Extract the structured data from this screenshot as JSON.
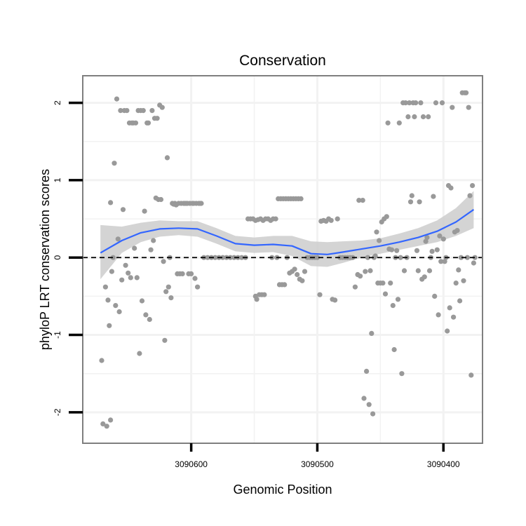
{
  "chart_data": {
    "type": "scatter",
    "title": "Conservation",
    "xlabel": "Genomic Position",
    "ylabel": "phyloP LRT conservation scores",
    "x_reversed": true,
    "xlim": [
      3090686,
      3090369
    ],
    "ylim": [
      -2.4,
      2.35
    ],
    "x_ticks": [
      3090600,
      3090500,
      3090400
    ],
    "x_tick_labels": [
      "3090600",
      "3090500",
      "3090400"
    ],
    "y_ticks": [
      -2,
      -1,
      0,
      1,
      2
    ],
    "y_tick_labels": [
      "-2",
      "-1",
      "0",
      "1",
      "2"
    ],
    "reference_line": 0,
    "colors": {
      "points": "#999999",
      "smooth_line": "#3366FF",
      "confidence_band": "#cccccc",
      "frame": "#7f7f7f",
      "grid": "#f2f2f2"
    },
    "points": [
      [
        3090671,
        -1.33
      ],
      [
        3090670,
        -2.15
      ],
      [
        3090668,
        -0.38
      ],
      [
        3090667,
        -2.18
      ],
      [
        3090666,
        -0.55
      ],
      [
        3090665,
        -0.88
      ],
      [
        3090664,
        -2.1
      ],
      [
        3090664,
        0.71
      ],
      [
        3090663,
        -0.18
      ],
      [
        3090662,
        0.0
      ],
      [
        3090661,
        1.22
      ],
      [
        3090660,
        -0.62
      ],
      [
        3090659,
        2.05
      ],
      [
        3090658,
        0.24
      ],
      [
        3090657,
        -0.7
      ],
      [
        3090656,
        1.9
      ],
      [
        3090655,
        -0.29
      ],
      [
        3090654,
        0.62
      ],
      [
        3090653,
        1.9
      ],
      [
        3090652,
        -0.1
      ],
      [
        3090651,
        1.9
      ],
      [
        3090650,
        -0.2
      ],
      [
        3090649,
        1.74
      ],
      [
        3090648,
        -0.26
      ],
      [
        3090647,
        1.74
      ],
      [
        3090646,
        1.74
      ],
      [
        3090645,
        0.12
      ],
      [
        3090644,
        1.74
      ],
      [
        3090643,
        -0.26
      ],
      [
        3090642,
        1.9
      ],
      [
        3090641,
        -1.24
      ],
      [
        3090640,
        1.9
      ],
      [
        3090639,
        -0.56
      ],
      [
        3090638,
        1.9
      ],
      [
        3090637,
        0.6
      ],
      [
        3090636,
        -0.74
      ],
      [
        3090635,
        1.74
      ],
      [
        3090634,
        1.74
      ],
      [
        3090633,
        -0.8
      ],
      [
        3090632,
        0.1
      ],
      [
        3090631,
        1.9
      ],
      [
        3090630,
        0.22
      ],
      [
        3090629,
        1.8
      ],
      [
        3090628,
        0.77
      ],
      [
        3090627,
        1.8
      ],
      [
        3090626,
        0.75
      ],
      [
        3090625,
        1.97
      ],
      [
        3090624,
        0.75
      ],
      [
        3090623,
        1.94
      ],
      [
        3090622,
        -0.05
      ],
      [
        3090621,
        -1.07
      ],
      [
        3090620,
        -0.44
      ],
      [
        3090619,
        1.29
      ],
      [
        3090618,
        -0.38
      ],
      [
        3090617,
        0.0
      ],
      [
        3090616,
        -0.52
      ],
      [
        3090615,
        0.7
      ],
      [
        3090614,
        0.69
      ],
      [
        3090613,
        0.7
      ],
      [
        3090612,
        0.68
      ],
      [
        3090611,
        -0.21
      ],
      [
        3090610,
        0.7
      ],
      [
        3090609,
        -0.21
      ],
      [
        3090608,
        0.7
      ],
      [
        3090607,
        -0.21
      ],
      [
        3090606,
        0.7
      ],
      [
        3090605,
        0.7
      ],
      [
        3090604,
        0.7
      ],
      [
        3090603,
        0.7
      ],
      [
        3090602,
        -0.21
      ],
      [
        3090601,
        0.7
      ],
      [
        3090600,
        -0.21
      ],
      [
        3090599,
        0.7
      ],
      [
        3090598,
        0.7
      ],
      [
        3090597,
        -0.27
      ],
      [
        3090596,
        0.7
      ],
      [
        3090595,
        -0.38
      ],
      [
        3090594,
        0.7
      ],
      [
        3090593,
        0.7
      ],
      [
        3090592,
        0.7
      ],
      [
        3090590,
        0.0
      ],
      [
        3090587,
        0.0
      ],
      [
        3090584,
        0.0
      ],
      [
        3090581,
        0.0
      ],
      [
        3090578,
        0.0
      ],
      [
        3090575,
        0.0
      ],
      [
        3090572,
        0.0
      ],
      [
        3090569,
        0.0
      ],
      [
        3090566,
        0.0
      ],
      [
        3090563,
        0.0
      ],
      [
        3090560,
        0.0
      ],
      [
        3090557,
        0.0
      ],
      [
        3090555,
        0.5
      ],
      [
        3090553,
        0.5
      ],
      [
        3090551,
        0.5
      ],
      [
        3090549,
        0.48
      ],
      [
        3090547,
        0.49
      ],
      [
        3090545,
        0.5
      ],
      [
        3090543,
        0.48
      ],
      [
        3090541,
        0.5
      ],
      [
        3090549,
        -0.5
      ],
      [
        3090548,
        -0.54
      ],
      [
        3090546,
        -0.48
      ],
      [
        3090544,
        -0.48
      ],
      [
        3090542,
        -0.48
      ],
      [
        3090539,
        0.5
      ],
      [
        3090537,
        0.48
      ],
      [
        3090535,
        0.5
      ],
      [
        3090533,
        0.5
      ],
      [
        3090536,
        0.0
      ],
      [
        3090532,
        0.0
      ],
      [
        3090531,
        0.76
      ],
      [
        3090529,
        0.76
      ],
      [
        3090527,
        0.76
      ],
      [
        3090525,
        0.76
      ],
      [
        3090523,
        0.76
      ],
      [
        3090521,
        0.76
      ],
      [
        3090519,
        0.76
      ],
      [
        3090517,
        0.76
      ],
      [
        3090515,
        0.76
      ],
      [
        3090513,
        0.76
      ],
      [
        3090530,
        -0.35
      ],
      [
        3090528,
        -0.35
      ],
      [
        3090526,
        -0.35
      ],
      [
        3090524,
        0.0
      ],
      [
        3090522,
        -0.2
      ],
      [
        3090520,
        -0.18
      ],
      [
        3090518,
        -0.15
      ],
      [
        3090516,
        -0.22
      ],
      [
        3090514,
        -0.28
      ],
      [
        3090512,
        -0.3
      ],
      [
        3090510,
        -0.18
      ],
      [
        3090508,
        0.0
      ],
      [
        3090506,
        0.0
      ],
      [
        3090504,
        0.0
      ],
      [
        3090502,
        0.0
      ],
      [
        3090500,
        0.0
      ],
      [
        3090498,
        -0.48
      ],
      [
        3090497,
        0.47
      ],
      [
        3090495,
        0.48
      ],
      [
        3090493,
        0.47
      ],
      [
        3090491,
        0.5
      ],
      [
        3090489,
        0.48
      ],
      [
        3090488,
        -0.54
      ],
      [
        3090486,
        -0.55
      ],
      [
        3090484,
        0.5
      ],
      [
        3090482,
        0.0
      ],
      [
        3090480,
        0.0
      ],
      [
        3090478,
        0.0
      ],
      [
        3090476,
        0.0
      ],
      [
        3090474,
        0.0
      ],
      [
        3090472,
        0.0
      ],
      [
        3090470,
        -0.38
      ],
      [
        3090468,
        -0.22
      ],
      [
        3090467,
        0.74
      ],
      [
        3090466,
        -0.24
      ],
      [
        3090464,
        0.74
      ],
      [
        3090463,
        -1.82
      ],
      [
        3090462,
        -0.18
      ],
      [
        3090461,
        -1.47
      ],
      [
        3090460,
        0.0
      ],
      [
        3090459,
        -1.9
      ],
      [
        3090458,
        -0.17
      ],
      [
        3090457,
        -0.98
      ],
      [
        3090456,
        -2.02
      ],
      [
        3090455,
        0.0
      ],
      [
        3090454,
        0.02
      ],
      [
        3090453,
        0.33
      ],
      [
        3090452,
        -0.33
      ],
      [
        3090451,
        0.22
      ],
      [
        3090450,
        -0.33
      ],
      [
        3090449,
        0.46
      ],
      [
        3090448,
        -0.33
      ],
      [
        3090447,
        0.5
      ],
      [
        3090446,
        -0.47
      ],
      [
        3090445,
        0.53
      ],
      [
        3090444,
        1.74
      ],
      [
        3090443,
        0.11
      ],
      [
        3090442,
        -0.33
      ],
      [
        3090441,
        0.1
      ],
      [
        3090440,
        -0.62
      ],
      [
        3090439,
        -1.19
      ],
      [
        3090438,
        0.0
      ],
      [
        3090437,
        0.09
      ],
      [
        3090436,
        -0.54
      ],
      [
        3090435,
        1.74
      ],
      [
        3090434,
        0.0
      ],
      [
        3090433,
        -1.5
      ],
      [
        3090432,
        2.0
      ],
      [
        3090431,
        -0.17
      ],
      [
        3090430,
        2.0
      ],
      [
        3090429,
        0.0
      ],
      [
        3090428,
        1.82
      ],
      [
        3090427,
        2.0
      ],
      [
        3090426,
        0.72
      ],
      [
        3090425,
        0.8
      ],
      [
        3090424,
        2.0
      ],
      [
        3090423,
        1.82
      ],
      [
        3090422,
        2.0
      ],
      [
        3090421,
        0.09
      ],
      [
        3090420,
        -0.17
      ],
      [
        3090419,
        0.72
      ],
      [
        3090418,
        2.0
      ],
      [
        3090417,
        -0.28
      ],
      [
        3090416,
        1.82
      ],
      [
        3090415,
        -0.25
      ],
      [
        3090414,
        0.21
      ],
      [
        3090413,
        0.26
      ],
      [
        3090412,
        1.82
      ],
      [
        3090411,
        -0.17
      ],
      [
        3090410,
        0.0
      ],
      [
        3090409,
        0.08
      ],
      [
        3090408,
        0.79
      ],
      [
        3090407,
        -0.5
      ],
      [
        3090406,
        2.0
      ],
      [
        3090405,
        0.1
      ],
      [
        3090404,
        -0.74
      ],
      [
        3090403,
        0.28
      ],
      [
        3090402,
        -0.05
      ],
      [
        3090401,
        2.0
      ],
      [
        3090400,
        0.24
      ],
      [
        3090399,
        -0.05
      ],
      [
        3090398,
        0.0
      ],
      [
        3090397,
        -0.95
      ],
      [
        3090396,
        0.93
      ],
      [
        3090395,
        -0.65
      ],
      [
        3090394,
        0.9
      ],
      [
        3090393,
        1.94
      ],
      [
        3090392,
        -0.77
      ],
      [
        3090391,
        0.33
      ],
      [
        3090390,
        -0.33
      ],
      [
        3090389,
        0.35
      ],
      [
        3090388,
        -0.16
      ],
      [
        3090387,
        -0.56
      ],
      [
        3090386,
        0.0
      ],
      [
        3090385,
        2.13
      ],
      [
        3090384,
        -0.3
      ],
      [
        3090383,
        2.13
      ],
      [
        3090382,
        2.13
      ],
      [
        3090381,
        0.0
      ],
      [
        3090380,
        1.94
      ],
      [
        3090379,
        0.8
      ],
      [
        3090378,
        -1.52
      ],
      [
        3090377,
        0.93
      ],
      [
        3090376,
        -0.07
      ],
      [
        3090375,
        0.0
      ]
    ],
    "smooth": {
      "x": [
        3090672,
        3090655,
        3090640,
        3090625,
        3090610,
        3090595,
        3090580,
        3090565,
        3090550,
        3090535,
        3090520,
        3090505,
        3090492,
        3090480,
        3090465,
        3090450,
        3090435,
        3090420,
        3090405,
        3090390,
        3090376
      ],
      "y": [
        0.06,
        0.22,
        0.32,
        0.37,
        0.38,
        0.37,
        0.28,
        0.18,
        0.16,
        0.17,
        0.15,
        0.05,
        0.04,
        0.07,
        0.11,
        0.15,
        0.2,
        0.26,
        0.34,
        0.46,
        0.62
      ],
      "lower": [
        -0.28,
        0.06,
        0.2,
        0.27,
        0.29,
        0.27,
        0.18,
        0.08,
        0.06,
        0.07,
        0.02,
        -0.11,
        -0.12,
        -0.07,
        0.0,
        0.05,
        0.1,
        0.15,
        0.2,
        0.28,
        0.38
      ],
      "upper": [
        0.42,
        0.4,
        0.45,
        0.48,
        0.47,
        0.47,
        0.38,
        0.28,
        0.26,
        0.28,
        0.28,
        0.21,
        0.2,
        0.21,
        0.22,
        0.25,
        0.31,
        0.38,
        0.48,
        0.64,
        0.86
      ]
    }
  }
}
